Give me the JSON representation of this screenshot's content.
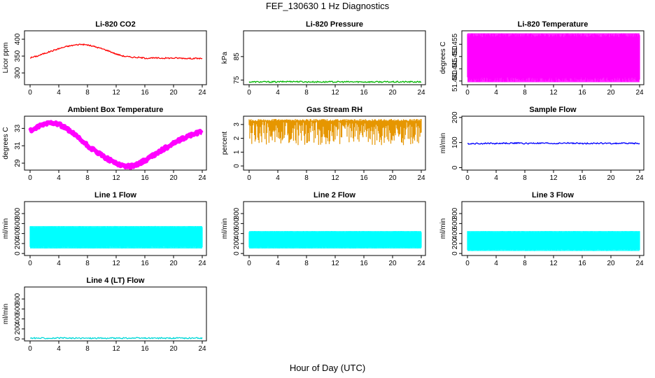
{
  "page": {
    "title": "FEF_130630  1 Hz Diagnostics",
    "xlabel": "Hour of Day (UTC)"
  },
  "chart_data": [
    {
      "type": "line",
      "title": "Li-820 CO2",
      "ylabel": "Licor ppm",
      "color": "#ff0000",
      "xlim": [
        0,
        24
      ],
      "ylim": [
        265,
        425
      ],
      "xticks": [
        "0",
        "4",
        "8",
        "12",
        "16",
        "20",
        "24"
      ],
      "yticks": [
        "300",
        "350",
        "400"
      ],
      "x": [
        0,
        1,
        2,
        3,
        4,
        5,
        6,
        7,
        8,
        9,
        10,
        11,
        12,
        13,
        14,
        15,
        16,
        17,
        18,
        19,
        20,
        21,
        22,
        23,
        24
      ],
      "y": [
        345,
        350,
        358,
        365,
        372,
        378,
        382,
        385,
        383,
        378,
        372,
        365,
        356,
        350,
        347,
        346,
        344,
        344,
        344,
        344,
        344,
        344,
        343,
        343,
        343
      ]
    },
    {
      "type": "line",
      "title": "Li-820 Pressure",
      "ylabel": "kPa",
      "color": "#00b400",
      "xlim": [
        0,
        24
      ],
      "ylim": [
        73,
        96
      ],
      "xticks": [
        "0",
        "4",
        "8",
        "12",
        "16",
        "20",
        "24"
      ],
      "yticks": [
        "75",
        "85"
      ],
      "x": [
        0,
        1,
        2,
        3,
        4,
        5,
        6,
        7,
        8,
        9,
        10,
        11,
        12,
        13,
        14,
        15,
        16,
        17,
        18,
        19,
        20,
        21,
        22,
        23,
        24
      ],
      "y": [
        74.2,
        74.2,
        74.2,
        74.2,
        74.2,
        74.3,
        74.4,
        74.3,
        74.2,
        74.2,
        74.2,
        74.2,
        74.2,
        74.2,
        74.2,
        74.2,
        74.2,
        74.2,
        74.2,
        74.2,
        74.2,
        74.2,
        74.2,
        74.2,
        74.2
      ]
    },
    {
      "type": "area",
      "title": "Li-820 Temperature",
      "ylabel": "degrees C",
      "color": "#ff00ff",
      "xlim": [
        0,
        24
      ],
      "ylim": [
        51.4385,
        51.4605
      ],
      "xticks": [
        "0",
        "4",
        "8",
        "12",
        "16",
        "20",
        "24"
      ],
      "yticks": [
        "51.440",
        "51.445",
        "51.450",
        "51.455"
      ],
      "y_band": [
        51.4395,
        51.4595
      ]
    },
    {
      "type": "line",
      "title": "Ambient Box Temperature",
      "ylabel": "degrees C",
      "color": "#ff00ff",
      "xlim": [
        0,
        24
      ],
      "ylim": [
        28.2,
        34.4
      ],
      "xticks": [
        "0",
        "4",
        "8",
        "12",
        "16",
        "20",
        "24"
      ],
      "yticks": [
        "29",
        "31",
        "33"
      ],
      "x": [
        0,
        1,
        2,
        3,
        4,
        5,
        6,
        7,
        8,
        9,
        10,
        11,
        12,
        13,
        14,
        15,
        16,
        17,
        18,
        19,
        20,
        21,
        22,
        23,
        24
      ],
      "y": [
        32.7,
        33.1,
        33.5,
        33.7,
        33.5,
        33.0,
        32.4,
        31.7,
        31.0,
        30.4,
        29.9,
        29.4,
        29.0,
        28.7,
        28.6,
        28.9,
        29.3,
        29.8,
        30.3,
        30.8,
        31.3,
        31.7,
        32.1,
        32.4,
        32.6
      ]
    },
    {
      "type": "line",
      "title": "Gas Stream RH",
      "ylabel": "percent",
      "color": "#e69600",
      "xlim": [
        0,
        24
      ],
      "ylim": [
        -0.3,
        3.6
      ],
      "xticks": [
        "0",
        "4",
        "8",
        "12",
        "16",
        "20",
        "24"
      ],
      "yticks": [
        "0",
        "1",
        "2",
        "3"
      ],
      "y_band": [
        1.5,
        3.4
      ]
    },
    {
      "type": "line",
      "title": "Sample Flow",
      "ylabel": "ml/min",
      "color": "#0000ff",
      "xlim": [
        0,
        24
      ],
      "ylim": [
        -10,
        205
      ],
      "xticks": [
        "0",
        "4",
        "8",
        "12",
        "16",
        "20",
        "24"
      ],
      "yticks": [
        "0",
        "100",
        "200"
      ],
      "x": [
        0,
        1,
        2,
        3,
        4,
        5,
        6,
        7,
        8,
        9,
        10,
        11,
        12,
        13,
        14,
        15,
        16,
        17,
        18,
        19,
        20,
        21,
        22,
        23,
        24
      ],
      "y": [
        95,
        96,
        96,
        97,
        96,
        97,
        97,
        98,
        96,
        97,
        97,
        97,
        96,
        97,
        98,
        97,
        96,
        97,
        97,
        97,
        96,
        97,
        97,
        97,
        96
      ]
    },
    {
      "type": "area",
      "title": "Line 1 Flow",
      "ylabel": "ml/min",
      "color": "#00ffff",
      "xlim": [
        0,
        24
      ],
      "ylim": [
        -40,
        1040
      ],
      "xticks": [
        "0",
        "4",
        "8",
        "12",
        "16",
        "20",
        "24"
      ],
      "yticks": [
        "0",
        "200",
        "400",
        "600",
        "800"
      ],
      "y_band": [
        100,
        550
      ]
    },
    {
      "type": "area",
      "title": "Line 2 Flow",
      "ylabel": "ml/min",
      "color": "#00ffff",
      "xlim": [
        0,
        24
      ],
      "ylim": [
        -40,
        1040
      ],
      "xticks": [
        "0",
        "4",
        "8",
        "12",
        "16",
        "20",
        "24"
      ],
      "yticks": [
        "0",
        "200",
        "400",
        "600",
        "800"
      ],
      "y_band": [
        100,
        450
      ]
    },
    {
      "type": "area",
      "title": "Line 3 Flow",
      "ylabel": "ml/min",
      "color": "#00ffff",
      "xlim": [
        0,
        24
      ],
      "ylim": [
        -40,
        1040
      ],
      "xticks": [
        "0",
        "4",
        "8",
        "12",
        "16",
        "20",
        "24"
      ],
      "yticks": [
        "0",
        "200",
        "400",
        "600",
        "800"
      ],
      "y_band": [
        50,
        450
      ]
    },
    {
      "type": "line",
      "title": "Line 4 (LT) Flow",
      "ylabel": "ml/min",
      "color": "#00d8d8",
      "xlim": [
        0,
        24
      ],
      "ylim": [
        -40,
        1040
      ],
      "xticks": [
        "0",
        "4",
        "8",
        "12",
        "16",
        "20",
        "24"
      ],
      "yticks": [
        "0",
        "200",
        "400",
        "600",
        "800"
      ],
      "x": [
        0,
        1,
        2,
        3,
        4,
        5,
        6,
        7,
        8,
        9,
        10,
        11,
        12,
        13,
        14,
        15,
        16,
        17,
        18,
        19,
        20,
        21,
        22,
        23,
        24
      ],
      "y": [
        15,
        15,
        15,
        15,
        15,
        15,
        15,
        15,
        15,
        15,
        15,
        15,
        15,
        15,
        15,
        15,
        15,
        15,
        15,
        15,
        15,
        15,
        15,
        15,
        15
      ]
    }
  ]
}
